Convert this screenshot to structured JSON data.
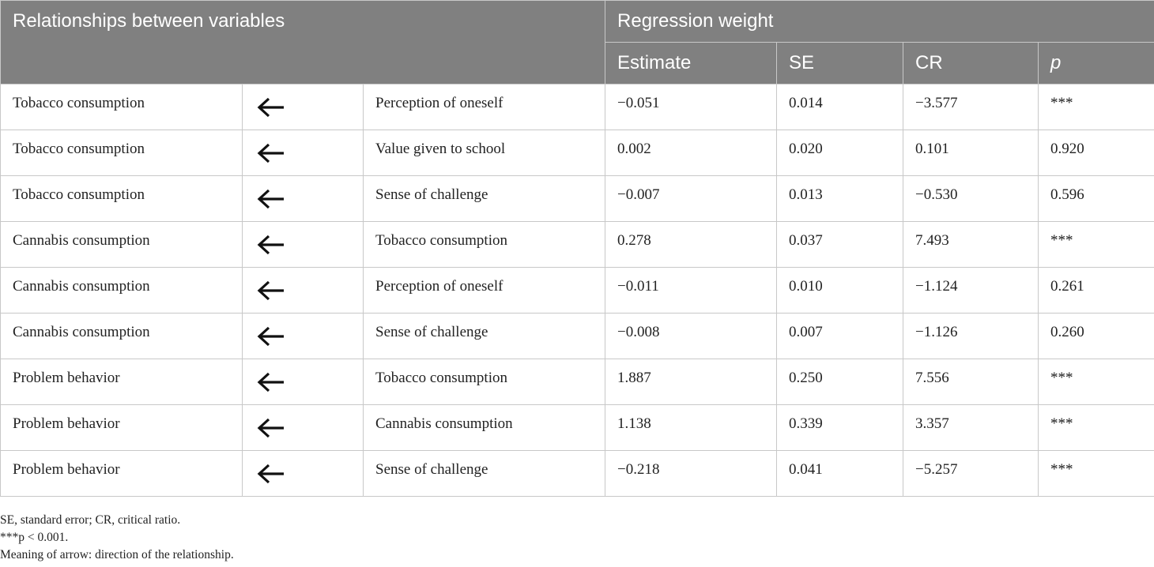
{
  "header": {
    "relationships": "Relationships between variables",
    "regression_weight": "Regression weight",
    "estimate": "Estimate",
    "se": "SE",
    "cr": "CR",
    "p": "p"
  },
  "rows": [
    {
      "dependent": "Tobacco consumption",
      "arrow": "left-arrow-icon",
      "predictor": "Perception of oneself",
      "estimate": "−0.051",
      "se": "0.014",
      "cr": "−3.577",
      "p": "***"
    },
    {
      "dependent": "Tobacco consumption",
      "arrow": "left-arrow-icon",
      "predictor": "Value given to school",
      "estimate": "0.002",
      "se": "0.020",
      "cr": "0.101",
      "p": "0.920"
    },
    {
      "dependent": "Tobacco consumption",
      "arrow": "left-arrow-icon",
      "predictor": "Sense of challenge",
      "estimate": "−0.007",
      "se": "0.013",
      "cr": "−0.530",
      "p": "0.596"
    },
    {
      "dependent": "Cannabis consumption",
      "arrow": "left-arrow-icon",
      "predictor": "Tobacco consumption",
      "estimate": "0.278",
      "se": "0.037",
      "cr": "7.493",
      "p": "***"
    },
    {
      "dependent": "Cannabis consumption",
      "arrow": "left-arrow-icon",
      "predictor": "Perception of oneself",
      "estimate": "−0.011",
      "se": "0.010",
      "cr": "−1.124",
      "p": "0.261"
    },
    {
      "dependent": "Cannabis consumption",
      "arrow": "left-arrow-icon",
      "predictor": "Sense of challenge",
      "estimate": "−0.008",
      "se": "0.007",
      "cr": "−1.126",
      "p": "0.260"
    },
    {
      "dependent": "Problem behavior",
      "arrow": "left-arrow-icon",
      "predictor": "Tobacco consumption",
      "estimate": "1.887",
      "se": "0.250",
      "cr": "7.556",
      "p": "***"
    },
    {
      "dependent": "Problem behavior",
      "arrow": "left-arrow-icon",
      "predictor": "Cannabis consumption",
      "estimate": "1.138",
      "se": "0.339",
      "cr": "3.357",
      "p": "***"
    },
    {
      "dependent": "Problem behavior",
      "arrow": "left-arrow-icon",
      "predictor": "Sense of challenge",
      "estimate": "−0.218",
      "se": "0.041",
      "cr": "−5.257",
      "p": "***"
    }
  ],
  "notes": [
    "SE, standard error; CR, critical ratio.",
    "***p < 0.001.",
    "Meaning of arrow: direction of the relationship."
  ]
}
